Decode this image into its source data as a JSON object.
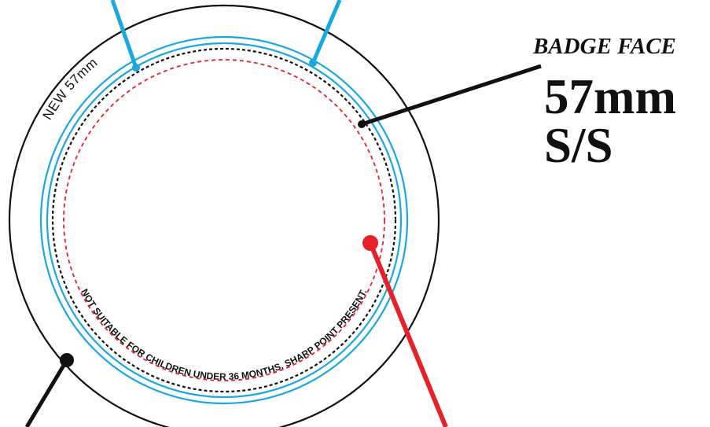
{
  "badge": {
    "title": "BADGE FACE",
    "size": "57mm",
    "type": "S/S",
    "outer_label": "NEW 57mm",
    "warning": "NOT SUITABLE FOR CHILDREN UNDER 36 MONTHS. SHARP POINT PRESENT."
  },
  "colors": {
    "outline": "#111111",
    "cyan": "#1aa7df",
    "red": "#e8202a"
  }
}
